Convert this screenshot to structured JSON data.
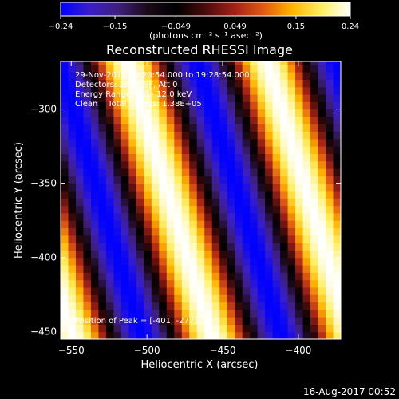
{
  "chart_data": {
    "type": "heatmap",
    "title": "Reconstructed RHESSI Image",
    "xlabel": "Heliocentric X (arcsec)",
    "ylabel": "Heliocentric Y (arcsec)",
    "xlim": [
      -557,
      -372
    ],
    "ylim": [
      -455,
      -268
    ],
    "x_ticks": [
      -550,
      -500,
      -450,
      -400
    ],
    "y_ticks": [
      -300,
      -350,
      -400,
      -450
    ],
    "grid": false,
    "colorbar": {
      "ticks": [
        -0.24,
        -0.15,
        -0.049,
        0.049,
        0.15,
        0.24
      ],
      "tick_labels": [
        "-0.24",
        "-0.15",
        "-0.049",
        "0.049",
        "0.15",
        "0.24"
      ],
      "range": [
        -0.24,
        0.24
      ],
      "unit_label": "(photons cm⁻² s⁻¹ asec⁻²)",
      "palette": [
        "#0000ff",
        "#3a1fc8",
        "#3f1f7a",
        "#1a0a18",
        "#000000",
        "#4a0c0c",
        "#a32018",
        "#e25a10",
        "#ffb400",
        "#ffef60",
        "#ffffff"
      ]
    },
    "pattern": {
      "description_values": "periodic diagonal fringes",
      "period_arcsec": 92,
      "amplitude": 0.24
    },
    "annotations": [
      "29-Nov-2016 19:20:54.000 to 19:28:54.000",
      "Detectors: 3F 7F 9F, Att 0",
      "Energy Range: 6.0 - 12.0 keV",
      "Clean    Total Counts: 1.38E+05",
      "Position of Peak = [-401, -277]"
    ]
  },
  "footer": {
    "timestamp": "16-Aug-2017 00:52"
  }
}
